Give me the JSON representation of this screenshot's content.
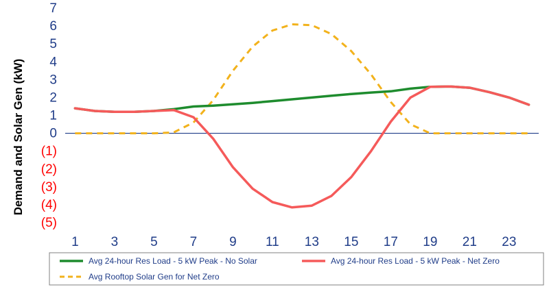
{
  "chart_data": {
    "type": "line",
    "title": "",
    "xlabel": "",
    "ylabel": "Demand and Solar Gen (kW)",
    "x": [
      1,
      2,
      3,
      4,
      5,
      6,
      7,
      8,
      9,
      10,
      11,
      12,
      13,
      14,
      15,
      16,
      17,
      18,
      19,
      20,
      21,
      22,
      23,
      24
    ],
    "x_tick_labels": [
      "1",
      "3",
      "5",
      "7",
      "9",
      "11",
      "13",
      "15",
      "17",
      "19",
      "21",
      "23"
    ],
    "x_tick_values": [
      1,
      3,
      5,
      7,
      9,
      11,
      13,
      15,
      17,
      19,
      21,
      23
    ],
    "xlim": [
      0.5,
      24.5
    ],
    "ylim": [
      -5,
      7
    ],
    "y_tick_values": [
      7,
      6,
      5,
      4,
      3,
      2,
      1,
      0,
      -1,
      -2,
      -3,
      -4,
      -5
    ],
    "y_tick_labels": [
      "7",
      "6",
      "5",
      "4",
      "3",
      "2",
      "1",
      "0",
      "(1)",
      "(2)",
      "(3)",
      "(4)",
      "(5)"
    ],
    "grid": false,
    "legend_position": "bottom",
    "series": [
      {
        "name": "Avg 24-hour Res Load - 5 kW Peak - No Solar",
        "color": "#1e8c2e",
        "style": "solid",
        "values": [
          1.4,
          1.25,
          1.2,
          1.2,
          1.25,
          1.35,
          1.5,
          1.55,
          1.62,
          1.7,
          1.8,
          1.9,
          2.0,
          2.1,
          2.2,
          2.28,
          2.35,
          2.5,
          2.6,
          2.62,
          2.55,
          2.3,
          2.0,
          1.6
        ]
      },
      {
        "name": "Avg 24-hour Res Load - 5 kW Peak - Net Zero",
        "color": "#f55a5a",
        "style": "solid",
        "values": [
          1.4,
          1.25,
          1.2,
          1.2,
          1.25,
          1.3,
          0.9,
          -0.3,
          -1.9,
          -3.1,
          -3.85,
          -4.15,
          -4.05,
          -3.5,
          -2.45,
          -1.0,
          0.65,
          2.0,
          2.6,
          2.62,
          2.55,
          2.3,
          2.0,
          1.6
        ]
      },
      {
        "name": "Avg Rooftop Solar Gen for Net Zero",
        "color": "#f2b21c",
        "style": "dashed",
        "values": [
          0,
          0,
          0,
          0,
          0,
          0.05,
          0.6,
          1.85,
          3.5,
          4.85,
          5.75,
          6.1,
          6.05,
          5.55,
          4.6,
          3.3,
          1.75,
          0.5,
          0,
          0,
          0,
          0,
          0,
          0
        ]
      }
    ]
  },
  "colors": {
    "axis_text": "#1f3c88",
    "negative_text": "#ff0000",
    "zero_line": "#1f3c88"
  }
}
